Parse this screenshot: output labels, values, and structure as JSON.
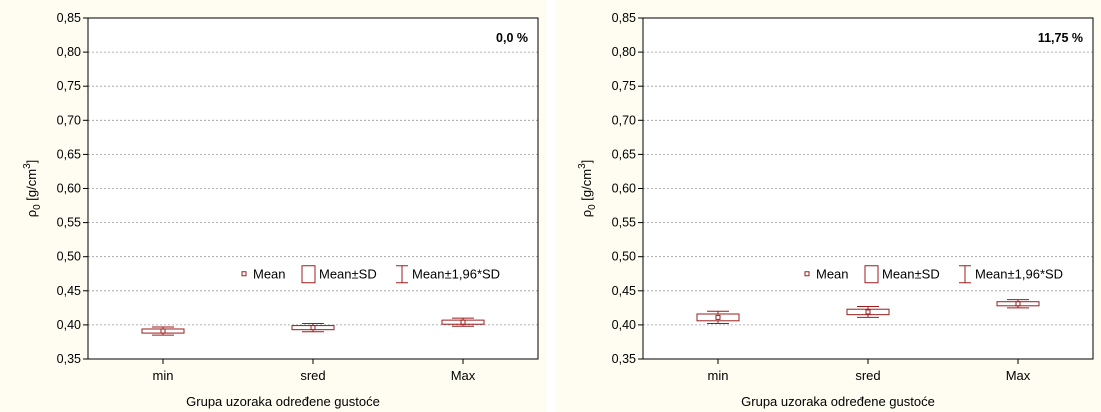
{
  "chart_data": [
    {
      "type": "box",
      "panel_label": "0,0 %",
      "xlabel": "Grupa uzoraka određene gustoće",
      "ylabel": "ρ",
      "ylabel_sub": "0",
      "ylabel_unit": " [g/cm",
      "ylabel_sup": "3",
      "ylabel_close": "]",
      "ylim": [
        0.35,
        0.85
      ],
      "y_ticks": [
        "0,35",
        "0,40",
        "0,45",
        "0,50",
        "0,55",
        "0,60",
        "0,65",
        "0,70",
        "0,75",
        "0,80",
        "0,85"
      ],
      "grid": true,
      "categories": [
        "min",
        "sred",
        "Max"
      ],
      "mean": [
        0.391,
        0.396,
        0.404
      ],
      "sd": [
        0.003,
        0.003,
        0.003
      ],
      "ci": [
        0.006,
        0.006,
        0.006
      ],
      "legend": [
        "Mean",
        "Mean±SD",
        "Mean±1,96*SD"
      ],
      "legend_position": "middle-right"
    },
    {
      "type": "box",
      "panel_label": "11,75 %",
      "xlabel": "Grupa uzoraka određene gustoće",
      "ylabel": "ρ",
      "ylabel_sub": "0",
      "ylabel_unit": " [g/cm",
      "ylabel_sup": "3",
      "ylabel_close": "]",
      "ylim": [
        0.35,
        0.85
      ],
      "y_ticks": [
        "0,35",
        "0,40",
        "0,45",
        "0,50",
        "0,55",
        "0,60",
        "0,65",
        "0,70",
        "0,75",
        "0,80",
        "0,85"
      ],
      "grid": true,
      "categories": [
        "min",
        "sred",
        "Max"
      ],
      "mean": [
        0.411,
        0.419,
        0.431
      ],
      "sd": [
        0.005,
        0.004,
        0.003
      ],
      "ci": [
        0.009,
        0.008,
        0.006
      ],
      "legend": [
        "Mean",
        "Mean±SD",
        "Mean±1,96*SD"
      ],
      "legend_position": "middle-right"
    }
  ],
  "colors": {
    "series": "#9c1c1c",
    "grid": "#9a9a9a",
    "axis": "#000000",
    "plot_bg": "#ffffff",
    "panel_bg": "#fffdf2"
  }
}
